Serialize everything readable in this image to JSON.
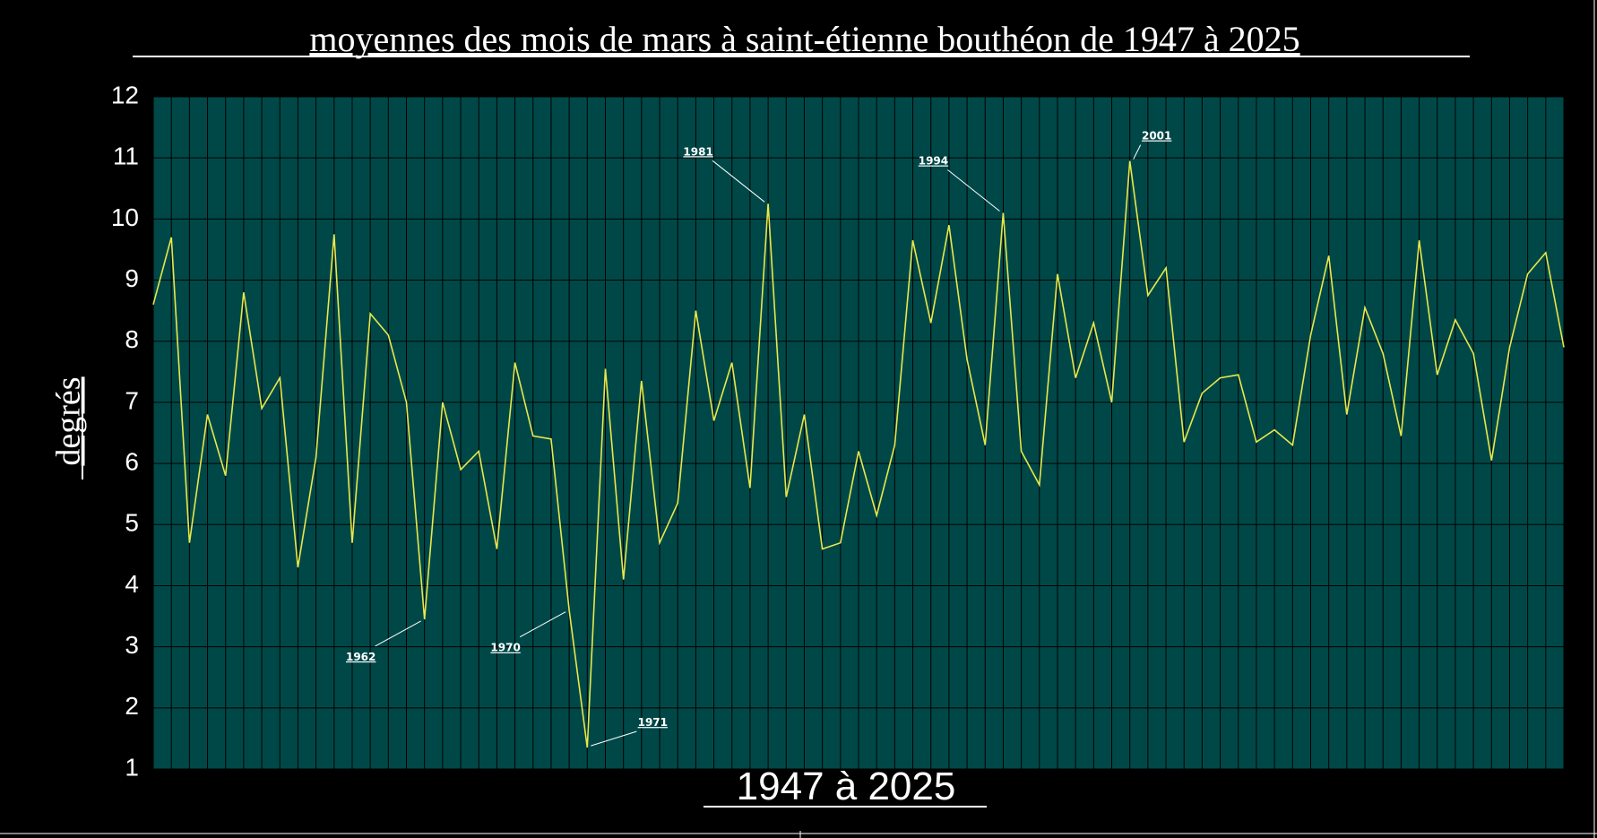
{
  "chart_data": {
    "type": "line",
    "title": "moyennes des mois de mars à saint-étienne bouthéon de 1947 à 2025",
    "xlabel": "1947  à  2025",
    "ylabel": "degrés",
    "ylim": [
      1,
      12
    ],
    "yticks": [
      "1",
      "2",
      "3",
      "4",
      "5",
      "6",
      "7",
      "8",
      "9",
      "10",
      "11",
      "12"
    ],
    "grid": true,
    "colors": {
      "background": "#000000",
      "plot_area": "#004848",
      "grid": "#000000",
      "line": "#e8e84a",
      "text": "#ffffff"
    },
    "series": [
      {
        "x": [
          1947,
          1948,
          1949,
          1950,
          1951,
          1952,
          1953,
          1954,
          1955,
          1956,
          1957,
          1958,
          1959,
          1960,
          1961,
          1962,
          1963,
          1964,
          1965,
          1966,
          1967,
          1968,
          1969,
          1970,
          1971,
          1972,
          1973,
          1974,
          1975,
          1976,
          1977,
          1978,
          1979,
          1980,
          1981,
          1982,
          1983,
          1984,
          1985,
          1986,
          1987,
          1988,
          1989,
          1990,
          1991,
          1992,
          1993,
          1994,
          1995,
          1996,
          1997,
          1998,
          1999,
          2000,
          2001,
          2002,
          2003,
          2004,
          2005,
          2006,
          2007,
          2008,
          2009,
          2010,
          2011,
          2012,
          2013,
          2014,
          2015,
          2016,
          2017,
          2018,
          2019,
          2020,
          2021,
          2022,
          2023,
          2024,
          2025
        ],
        "values": [
          8.6,
          9.7,
          4.7,
          6.8,
          5.8,
          8.8,
          6.9,
          7.4,
          4.3,
          6.1,
          9.75,
          4.7,
          8.45,
          8.1,
          7.0,
          3.45,
          7.0,
          5.9,
          6.2,
          4.6,
          7.65,
          6.45,
          6.4,
          3.6,
          1.35,
          7.55,
          4.1,
          7.35,
          4.7,
          5.35,
          8.5,
          6.7,
          7.65,
          5.6,
          10.25,
          5.45,
          6.8,
          4.6,
          4.7,
          6.2,
          5.15,
          6.3,
          9.65,
          8.3,
          9.9,
          7.7,
          6.3,
          10.1,
          6.2,
          5.65,
          9.1,
          7.4,
          8.3,
          7.0,
          10.95,
          8.75,
          9.2,
          6.35,
          7.15,
          7.4,
          7.45,
          6.35,
          6.55,
          6.3,
          8.1,
          9.4,
          6.8,
          8.55,
          7.8,
          6.45,
          9.65,
          7.45,
          8.35,
          7.8,
          6.05,
          7.9,
          9.1,
          9.45,
          7.9
        ]
      }
    ],
    "annotations": [
      {
        "label": "1962",
        "year": 1962,
        "value": 3.45,
        "side": "left",
        "below": true
      },
      {
        "label": "1970",
        "year": 1970,
        "value": 3.6,
        "side": "left",
        "below": true
      },
      {
        "label": "1971",
        "year": 1971,
        "value": 1.35,
        "side": "right",
        "below": false
      },
      {
        "label": "1981",
        "year": 1981,
        "value": 10.25,
        "side": "left",
        "below": false
      },
      {
        "label": "1994",
        "year": 1994,
        "value": 10.1,
        "side": "left",
        "below": false
      },
      {
        "label": "2001",
        "year": 2001,
        "value": 10.95,
        "side": "right",
        "below": false
      }
    ]
  }
}
